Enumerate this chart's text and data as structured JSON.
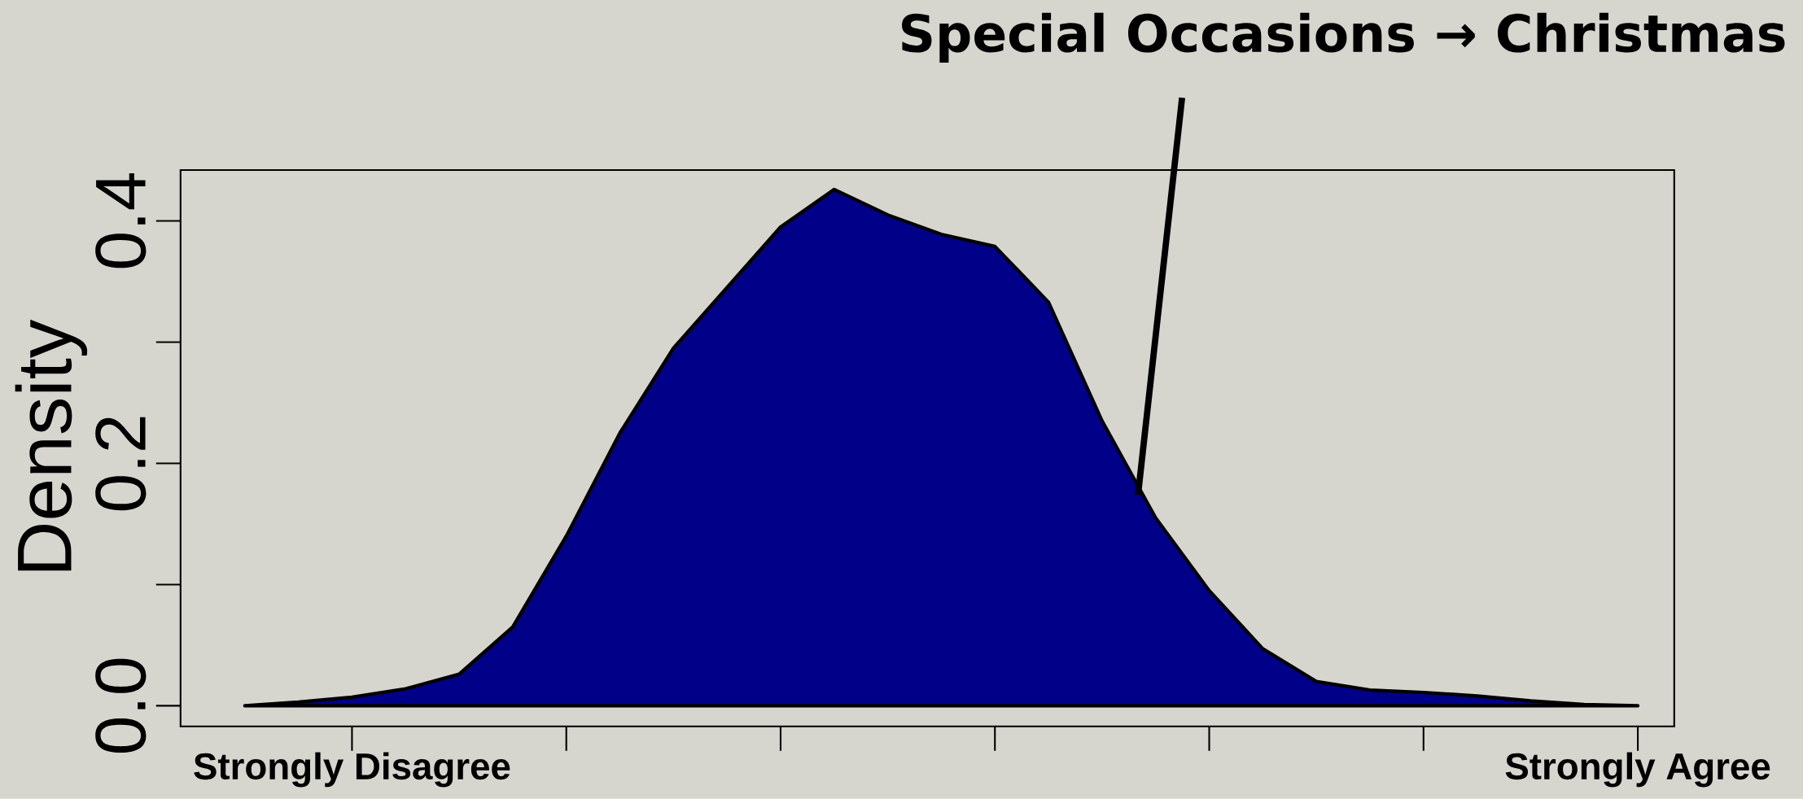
{
  "chart_data": {
    "type": "area",
    "ylabel": "Density",
    "color": "#000088",
    "categories": [
      null,
      null,
      "Strongly Disagree",
      null,
      null,
      null,
      null,
      null,
      null,
      null,
      null,
      null,
      null,
      null,
      null,
      null,
      null,
      null,
      null,
      null,
      null,
      null,
      null,
      null,
      null,
      null,
      "Strongly Agree"
    ],
    "values": [
      0,
      0.003,
      0.007,
      0.014,
      0.026,
      0.065,
      0.14,
      0.225,
      0.295,
      0.345,
      0.395,
      0.426,
      0.405,
      0.389,
      0.379,
      0.333,
      0.235,
      0.155,
      0.095,
      0.047,
      0.02,
      0.013,
      0.011,
      0.008,
      0.004,
      0.001,
      0
    ],
    "ylim": [
      -0.017,
      0.442
    ],
    "yticks": [
      {
        "value": 0,
        "label": "0.0"
      },
      {
        "value": 0.2,
        "label": "0.2"
      },
      {
        "value": 0.4,
        "label": "0.4"
      }
    ],
    "annotations": [
      "Special Occasions → Christmas"
    ]
  }
}
